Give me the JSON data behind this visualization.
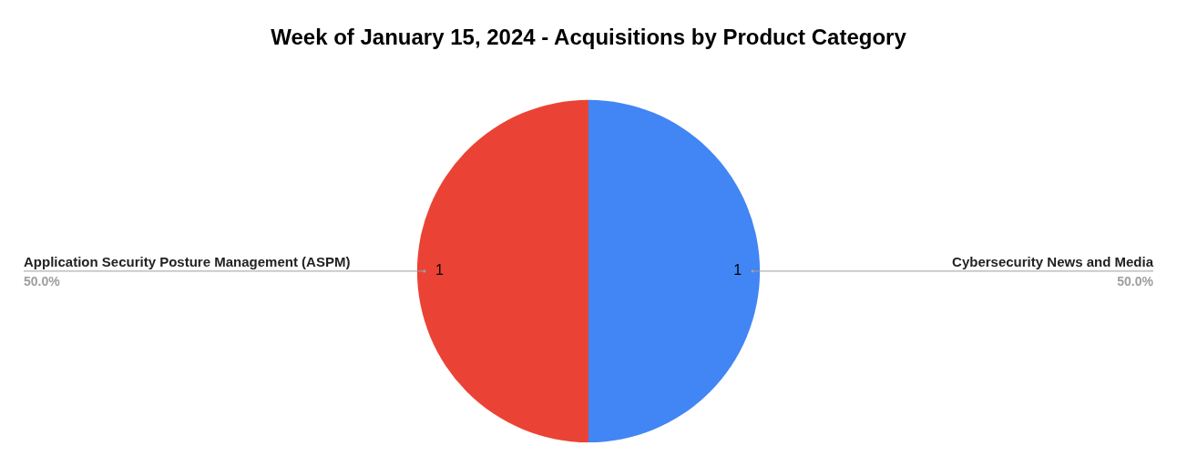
{
  "chart_data": {
    "type": "pie",
    "title": "Week of January 15, 2024 - Acquisitions by Product Category",
    "categories": [
      "Cybersecurity News and Media",
      "Application Security Posture Management (ASPM)"
    ],
    "values": [
      1,
      1
    ],
    "colors": [
      "#4285f4",
      "#ea4335"
    ],
    "data_labels": true,
    "annotations": [
      "50.0%",
      "50.0%"
    ]
  }
}
